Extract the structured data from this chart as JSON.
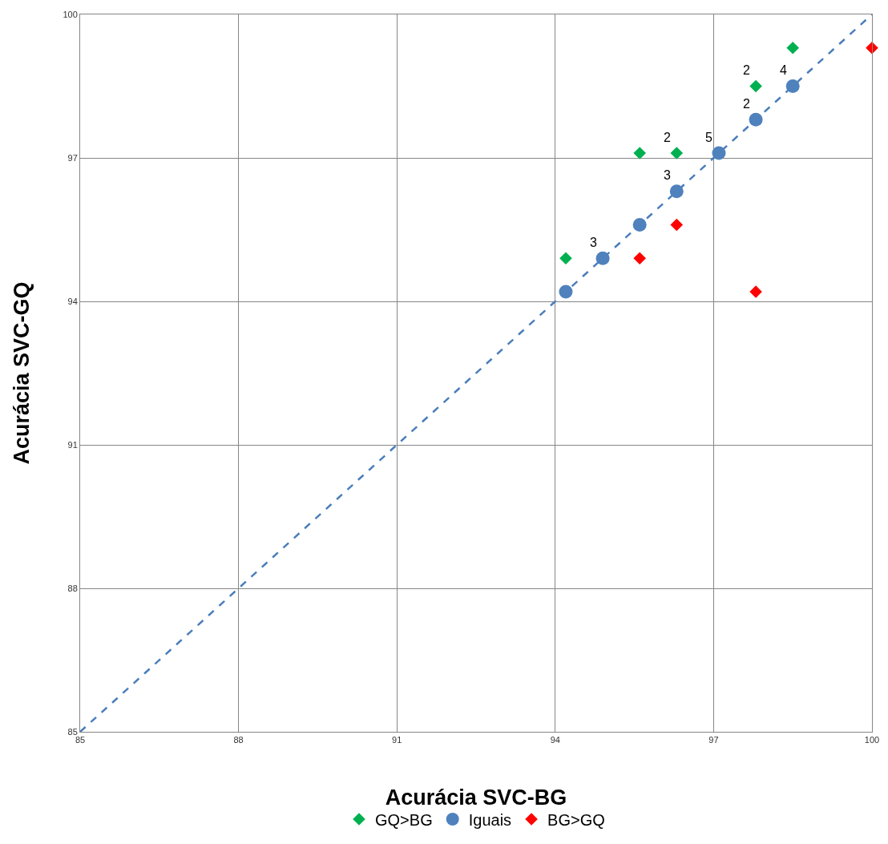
{
  "chart_data": {
    "type": "scatter",
    "xlabel": "Acurácia SVC-BG",
    "ylabel": "Acurácia SVC-GQ",
    "xlim": [
      85,
      100
    ],
    "ylim": [
      85,
      100
    ],
    "xticks": [
      85,
      88,
      91,
      94,
      97,
      100
    ],
    "yticks": [
      85,
      88,
      91,
      94,
      97,
      100
    ],
    "grid": true,
    "legend": "bottom",
    "series": [
      {
        "name": "GQ>BG",
        "color": "#00b050",
        "marker": "diamond",
        "x": [
          94.2,
          95.6,
          96.3,
          97.8,
          98.5
        ],
        "values": [
          94.9,
          97.1,
          97.1,
          98.5,
          99.3
        ]
      },
      {
        "name": "Iguais",
        "color": "#4f81bd",
        "marker": "circle",
        "x": [
          94.2,
          94.9,
          95.6,
          96.3,
          97.1,
          97.8,
          98.5
        ],
        "values": [
          94.2,
          94.9,
          95.6,
          96.3,
          97.1,
          97.8,
          98.5
        ]
      },
      {
        "name": "BG>GQ",
        "color": "#ff0000",
        "marker": "diamond",
        "x": [
          95.6,
          96.3,
          97.8,
          100
        ],
        "values": [
          94.9,
          95.6,
          94.2,
          99.3
        ]
      },
      {
        "type": "line",
        "color": "#4a7ebb",
        "line_style": "dashed",
        "marker": "none",
        "x": [
          85,
          100
        ],
        "values": [
          85,
          100
        ]
      }
    ],
    "annotations": [
      {
        "text": "3",
        "x": 94.9,
        "y": 94.9
      },
      {
        "text": "3",
        "x": 96.3,
        "y": 96.3
      },
      {
        "text": "5",
        "x": 97.1,
        "y": 97.1
      },
      {
        "text": "2",
        "x": 97.8,
        "y": 97.8
      },
      {
        "text": "4",
        "x": 98.5,
        "y": 98.5
      },
      {
        "text": "2",
        "x": 96.3,
        "y": 97.1
      },
      {
        "text": "2",
        "x": 97.8,
        "y": 98.5
      }
    ]
  }
}
